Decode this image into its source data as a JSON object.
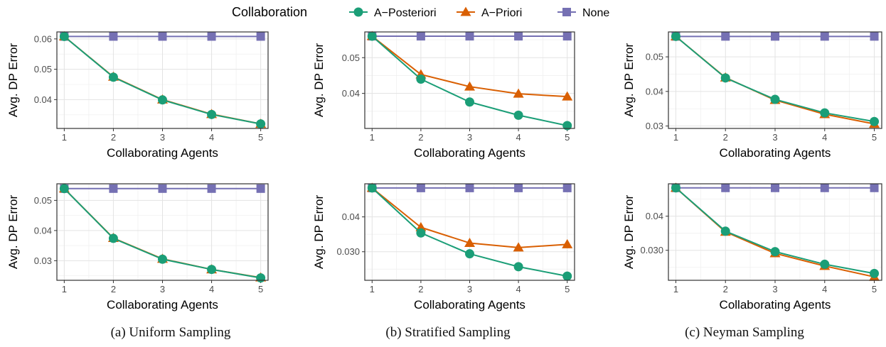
{
  "legend": {
    "title": "Collaboration",
    "entries": [
      {
        "name": "A−Posteriori",
        "color": "#1b9e77",
        "marker": "circle"
      },
      {
        "name": "A−Priori",
        "color": "#d95f02",
        "marker": "triangle"
      },
      {
        "name": "None",
        "color": "#7570b3",
        "marker": "square"
      }
    ]
  },
  "captions": [
    "(a) Uniform Sampling",
    "(b) Stratified Sampling",
    "(c) Neyman Sampling"
  ],
  "chart_data": [
    {
      "type": "line",
      "xlabel": "Collaborating Agents",
      "ylabel": "Avg. DP Error",
      "x": [
        1,
        2,
        3,
        4,
        5
      ],
      "xlim": [
        0.85,
        5.15
      ],
      "ylim": [
        0.0305,
        0.0623
      ],
      "yticks": [
        0.04,
        0.05,
        0.06
      ],
      "ytick_labels": [
        "0.04",
        "0.05",
        "0.06"
      ],
      "grid": true,
      "series": [
        {
          "name": "A−Posteriori",
          "values": [
            0.0608,
            0.0474,
            0.0399,
            0.0351,
            0.032
          ]
        },
        {
          "name": "A−Priori",
          "values": [
            0.0608,
            0.0475,
            0.04,
            0.0352,
            0.032
          ]
        },
        {
          "name": "None",
          "values": [
            0.0608,
            0.0608,
            0.0608,
            0.0608,
            0.0608
          ]
        }
      ]
    },
    {
      "type": "line",
      "xlabel": "Collaborating Agents",
      "ylabel": "Avg. DP Error",
      "x": [
        1,
        2,
        3,
        4,
        5
      ],
      "xlim": [
        0.85,
        5.15
      ],
      "ylim": [
        0.0302,
        0.0572
      ],
      "yticks": [
        0.04,
        0.05
      ],
      "ytick_labels": [
        "0.04",
        "0.05"
      ],
      "grid": true,
      "series": [
        {
          "name": "A−Posteriori",
          "values": [
            0.056,
            0.044,
            0.0376,
            0.0339,
            0.031
          ]
        },
        {
          "name": "A−Priori",
          "values": [
            0.056,
            0.0453,
            0.0419,
            0.0399,
            0.0391
          ]
        },
        {
          "name": "None",
          "values": [
            0.056,
            0.056,
            0.056,
            0.056,
            0.056
          ]
        }
      ]
    },
    {
      "type": "line",
      "xlabel": "Collaborating Agents",
      "ylabel": "Avg. DP Error",
      "x": [
        1,
        2,
        3,
        4,
        5
      ],
      "xlim": [
        0.85,
        5.15
      ],
      "ylim": [
        0.0293,
        0.0572
      ],
      "yticks": [
        0.03,
        0.04,
        0.05
      ],
      "ytick_labels": [
        "0.03",
        "0.04",
        "0.05"
      ],
      "grid": true,
      "series": [
        {
          "name": "A−Posteriori",
          "values": [
            0.0559,
            0.0439,
            0.0377,
            0.0338,
            0.0313
          ]
        },
        {
          "name": "A−Priori",
          "values": [
            0.0559,
            0.044,
            0.0375,
            0.0334,
            0.0306
          ]
        },
        {
          "name": "None",
          "values": [
            0.0559,
            0.0559,
            0.0559,
            0.0559,
            0.0559
          ]
        }
      ]
    },
    {
      "type": "line",
      "xlabel": "Collaborating Agents",
      "ylabel": "Avg. DP Error",
      "x": [
        1,
        2,
        3,
        4,
        5
      ],
      "xlim": [
        0.85,
        5.15
      ],
      "ylim": [
        0.0235,
        0.0555
      ],
      "yticks": [
        0.03,
        0.04,
        0.05
      ],
      "ytick_labels": [
        "0.03",
        "0.04",
        "0.05"
      ],
      "grid": true,
      "series": [
        {
          "name": "A−Posteriori",
          "values": [
            0.0539,
            0.0374,
            0.0305,
            0.0271,
            0.0243
          ]
        },
        {
          "name": "A−Priori",
          "values": [
            0.0539,
            0.0375,
            0.0306,
            0.0271,
            0.0244
          ]
        },
        {
          "name": "None",
          "values": [
            0.0539,
            0.0539,
            0.0539,
            0.0539,
            0.0539
          ]
        }
      ]
    },
    {
      "type": "line",
      "xlabel": "Collaborating Agents",
      "ylabel": "Avg. DP Error",
      "x": [
        1,
        2,
        3,
        4,
        5
      ],
      "xlim": [
        0.85,
        5.15
      ],
      "ylim": [
        0.0218,
        0.0495
      ],
      "yticks": [
        0.03,
        0.04
      ],
      "ytick_labels": [
        "0.030",
        "0.04"
      ],
      "grid": true,
      "series": [
        {
          "name": "A−Posteriori",
          "values": [
            0.0483,
            0.0354,
            0.0294,
            0.0257,
            0.023
          ]
        },
        {
          "name": "A−Priori",
          "values": [
            0.0483,
            0.037,
            0.0325,
            0.0312,
            0.0321
          ]
        },
        {
          "name": "None",
          "values": [
            0.0483,
            0.0483,
            0.0483,
            0.0483,
            0.0483
          ]
        }
      ]
    },
    {
      "type": "line",
      "xlabel": "Collaborating Agents",
      "ylabel": "Avg. DP Error",
      "x": [
        1,
        2,
        3,
        4,
        5
      ],
      "xlim": [
        0.85,
        5.15
      ],
      "ylim": [
        0.0212,
        0.0495
      ],
      "yticks": [
        0.03,
        0.04
      ],
      "ytick_labels": [
        "0.030",
        "0.04"
      ],
      "grid": true,
      "series": [
        {
          "name": "A−Posteriori",
          "values": [
            0.0483,
            0.0356,
            0.0296,
            0.0259,
            0.0232
          ]
        },
        {
          "name": "A−Priori",
          "values": [
            0.0483,
            0.0354,
            0.0291,
            0.0254,
            0.0222
          ]
        },
        {
          "name": "None",
          "values": [
            0.0483,
            0.0483,
            0.0483,
            0.0483,
            0.0483
          ]
        }
      ]
    }
  ]
}
